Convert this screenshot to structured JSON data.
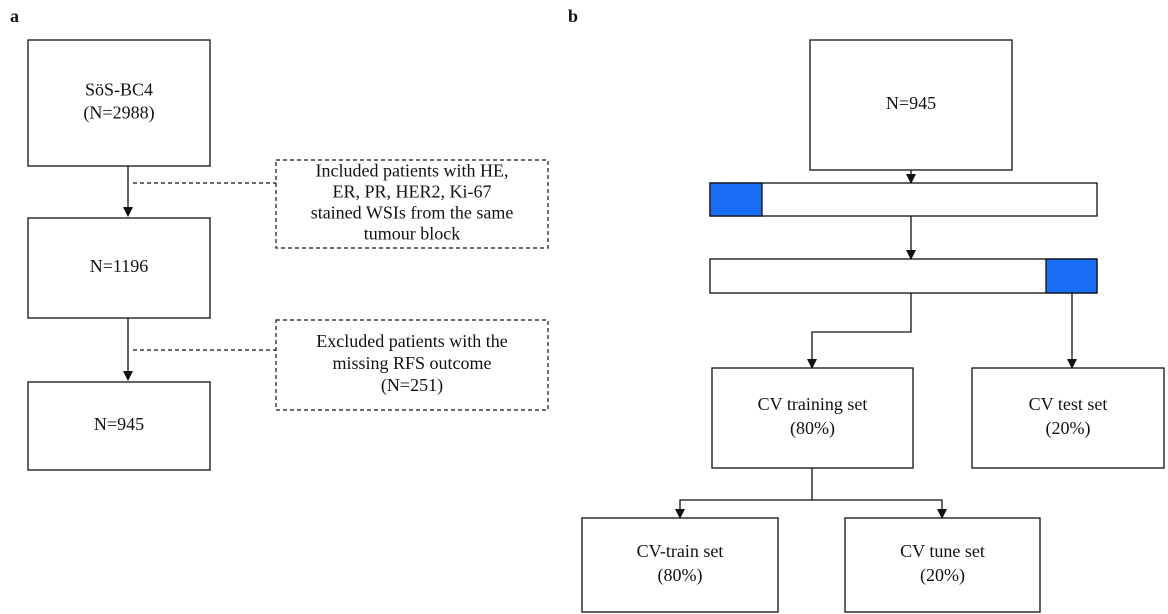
{
  "panels": [
    {
      "label": "a",
      "nodes": [
        {
          "lines": [
            "SöS-BC4",
            "(N=2988)"
          ]
        },
        {
          "lines": [
            "N=1196"
          ]
        },
        {
          "lines": [
            "N=945"
          ]
        }
      ],
      "notes": [
        {
          "lines": [
            "Included patients with HE,",
            "ER, PR, HER2, Ki-67",
            "stained WSIs from the same",
            "tumour block"
          ]
        },
        {
          "lines": [
            "Excluded patients with the",
            "missing RFS outcome",
            "(N=251)"
          ]
        }
      ]
    },
    {
      "label": "b",
      "nodes": [
        {
          "lines": [
            "N=945"
          ]
        },
        {
          "lines": [
            "CV training set",
            "(80%)"
          ]
        },
        {
          "lines": [
            "CV test set",
            "(20%)"
          ]
        },
        {
          "lines": [
            "CV-train set",
            "(80%)"
          ]
        },
        {
          "lines": [
            "CV tune set",
            "(20%)"
          ]
        }
      ]
    }
  ]
}
